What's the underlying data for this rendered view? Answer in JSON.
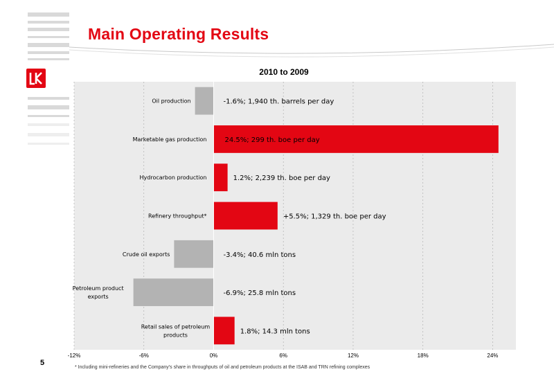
{
  "slide": {
    "title": "Main Operating Results",
    "page_number": "5",
    "footnote": "*  Including mini-refineries and the Company's share in throughputs of oil and petroleum products at the ISAB and TRN refining complexes",
    "logo_text": "ЛУК",
    "colors": {
      "accent": "#e30613",
      "negative_bar": "#b3b3b3",
      "plot_bg": "#ebebeb"
    }
  },
  "chart_data": {
    "type": "bar",
    "orientation": "horizontal",
    "title": "2010 to 2009",
    "xlabel": "",
    "ylabel": "",
    "xlim": [
      -12,
      26
    ],
    "x_ticks": [
      "-12%",
      "-6%",
      "0%",
      "6%",
      "12%",
      "18%",
      "24%"
    ],
    "x_tick_values": [
      -12,
      -6,
      0,
      6,
      12,
      18,
      24
    ],
    "grid": true,
    "categories": [
      "Oil production",
      "Marketable gas production",
      "Hydrocarbon production",
      "Refinery throughput*",
      "Crude oil exports",
      "Petroleum product exports",
      "Retail sales of petroleum products"
    ],
    "category_lines": [
      [
        "Oil production"
      ],
      [
        "Marketable gas production"
      ],
      [
        "Hydrocarbon production"
      ],
      [
        "Refinery throughput*"
      ],
      [
        "Crude oil exports"
      ],
      [
        "Petroleum product",
        "exports"
      ],
      [
        "Retail sales of petroleum",
        "products"
      ]
    ],
    "values": [
      -1.6,
      24.5,
      1.2,
      5.5,
      -3.4,
      -6.9,
      1.8
    ],
    "data_labels": [
      "-1.6%; 1,940 th. barrels per day",
      "24.5%; 299 th. boe per day",
      "1.2%; 2,239 th. boe per day",
      "+5.5%; 1,329 th. boe per day",
      "-3.4%; 40.6 mln tons",
      "-6.9%; 25.8 mln tons",
      "1.8%; 14.3 mln tons"
    ]
  }
}
